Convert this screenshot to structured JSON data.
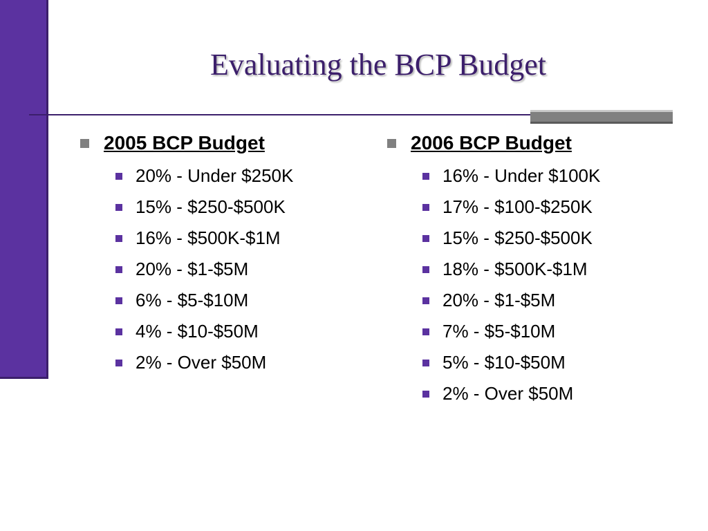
{
  "slide": {
    "title": "Evaluating the BCP Budget"
  },
  "columns": [
    {
      "heading": "2005 BCP Budget",
      "items": [
        "20% - Under $250K",
        "15% - $250-$500K",
        "16% - $500K-$1M",
        "20% - $1-$5M",
        "6% - $5-$10M",
        "4% - $10-$50M",
        "2% - Over $50M"
      ]
    },
    {
      "heading": "2006 BCP Budget",
      "items": [
        "16% - Under $100K",
        "17% - $100-$250K",
        "15% - $250-$500K",
        "18% - $500K-$1M",
        "20% - $1-$5M",
        "7% - $5-$10M",
        "5% - $10-$50M",
        "2% - Over $50M"
      ]
    }
  ],
  "colors": {
    "accent": "#5b32a0",
    "title": "#3c1f6b",
    "bullet_level1": "#808080"
  }
}
